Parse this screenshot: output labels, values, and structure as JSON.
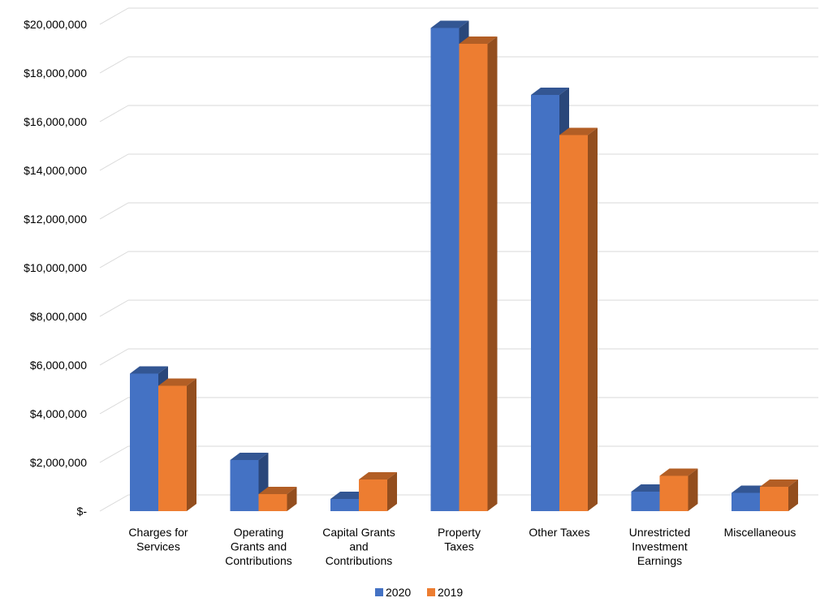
{
  "chart_data": {
    "type": "bar",
    "style": "3d-clustered-column",
    "title": "",
    "xlabel": "",
    "ylabel": "",
    "ylim": [
      0,
      20000000
    ],
    "y_tick_labels": [
      "$-",
      "$2,000,000",
      "$4,000,000",
      "$6,000,000",
      "$8,000,000",
      "$10,000,000",
      "$12,000,000",
      "$14,000,000",
      "$16,000,000",
      "$18,000,000",
      "$20,000,000"
    ],
    "grid": true,
    "legend_position": "bottom",
    "categories": [
      [
        "Charges for",
        "Services"
      ],
      [
        "Operating",
        "Grants and",
        "Contributions"
      ],
      [
        "Capital Grants",
        "and",
        "Contributions"
      ],
      [
        "Property",
        "Taxes"
      ],
      [
        "Other Taxes"
      ],
      [
        "Unrestricted",
        "Investment",
        "Earnings"
      ],
      [
        "Miscellaneous"
      ]
    ],
    "series": [
      {
        "name": "2020",
        "color": "#4472C4",
        "values": [
          5650000,
          2100000,
          500000,
          19850000,
          17100000,
          800000,
          750000
        ]
      },
      {
        "name": "2019",
        "color": "#ED7D31",
        "values": [
          5150000,
          700000,
          1300000,
          19200000,
          15450000,
          1450000,
          1000000
        ]
      }
    ]
  }
}
